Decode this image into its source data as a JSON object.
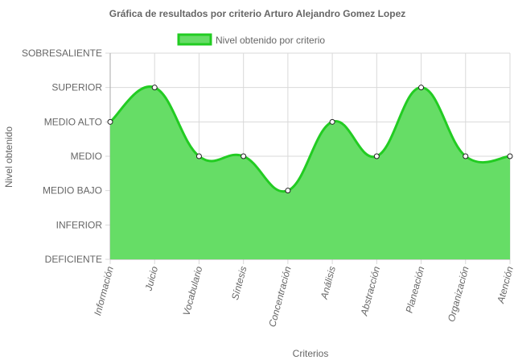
{
  "chart_data": {
    "type": "area",
    "title": "Gráfica de resultados por criterio Arturo Alejandro Gomez Lopez",
    "xlabel": "Criterios",
    "ylabel": "Nivel obtenido",
    "legend_position": "top",
    "grid": true,
    "y_levels": [
      "DEFICIENTE",
      "INFERIOR",
      "MEDIO BAJO",
      "MEDIO",
      "MEDIO ALTO",
      "SUPERIOR",
      "SOBRESALIENTE"
    ],
    "categories": [
      "Información",
      "Juicio",
      "Vocabulario",
      "Síntesis",
      "Concentración",
      "Análisis",
      "Abstracción",
      "Planeación",
      "Organización",
      "Atención"
    ],
    "series": [
      {
        "name": "Nivel obtenido por criterio",
        "values": [
          "MEDIO ALTO",
          "SUPERIOR",
          "MEDIO",
          "MEDIO",
          "MEDIO BAJO",
          "MEDIO ALTO",
          "MEDIO",
          "SUPERIOR",
          "MEDIO",
          "MEDIO"
        ],
        "fill_color": "#66dd66",
        "line_color": "#22cc22"
      }
    ]
  }
}
